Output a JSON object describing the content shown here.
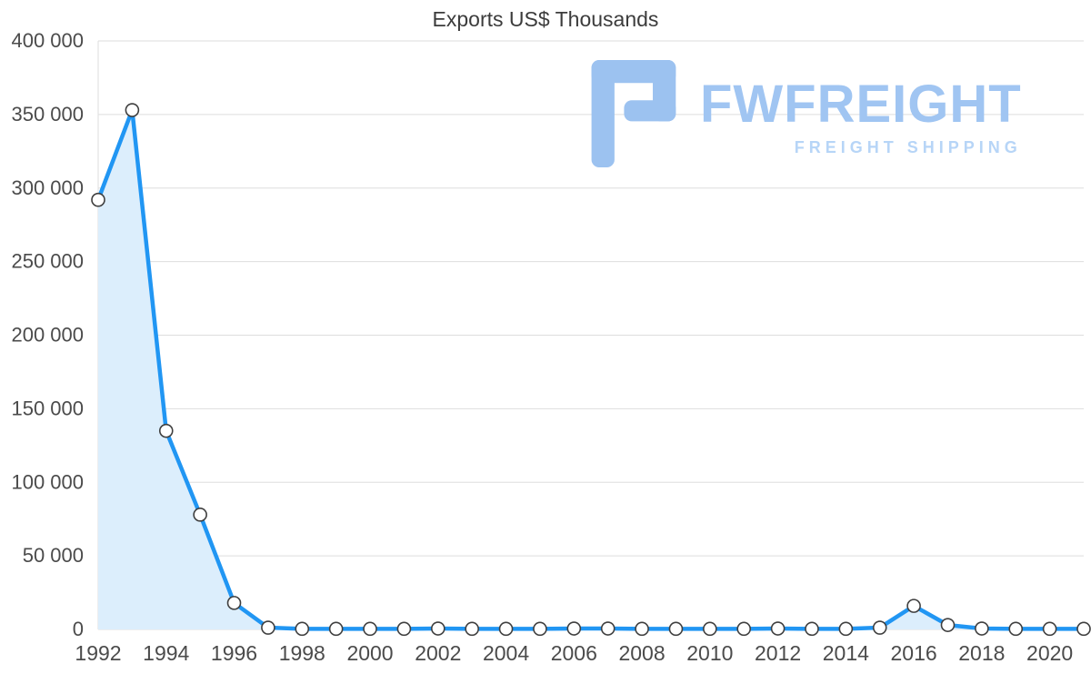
{
  "title": "Exports US$ Thousands",
  "watermark": {
    "brand": "FWFREIGHT",
    "tagline": "FREIGHT SHIPPING",
    "logo_color": "#9CC2F0",
    "brand_color": "#A0C5F2",
    "tagline_color": "#B7D5F7"
  },
  "chart_data": {
    "type": "area",
    "title": "Exports US$ Thousands",
    "x": [
      1992,
      1993,
      1994,
      1995,
      1996,
      1997,
      1998,
      1999,
      2000,
      2001,
      2002,
      2003,
      2004,
      2005,
      2006,
      2007,
      2008,
      2009,
      2010,
      2011,
      2012,
      2013,
      2014,
      2015,
      2016,
      2017,
      2018,
      2019,
      2020,
      2021
    ],
    "values": [
      292000,
      353000,
      135000,
      78000,
      18000,
      1200,
      400,
      400,
      400,
      400,
      600,
      400,
      400,
      400,
      600,
      600,
      400,
      400,
      400,
      400,
      600,
      400,
      400,
      1200,
      16000,
      3000,
      600,
      400,
      400,
      400
    ],
    "ylim": [
      0,
      400000
    ],
    "ytick_step": 50000,
    "ytick_labels": [
      "0",
      "50 000",
      "100 000",
      "150 000",
      "200 000",
      "250 000",
      "300 000",
      "350 000",
      "400 000"
    ],
    "xtick_labels": [
      "1992",
      "1994",
      "1996",
      "1998",
      "2000",
      "2002",
      "2004",
      "2006",
      "2008",
      "2010",
      "2012",
      "2014",
      "2016",
      "2018",
      "2020"
    ],
    "xtick_every": 2,
    "grid": "horizontal",
    "legend": "none",
    "line_color": "#2196F3",
    "fill_color": "#DCEEFC",
    "marker_fill": "#FFFFFF",
    "marker_stroke": "#3f3f3f",
    "grid_color": "#DEDEDE",
    "axis_text_color": "#4b4b4b"
  }
}
